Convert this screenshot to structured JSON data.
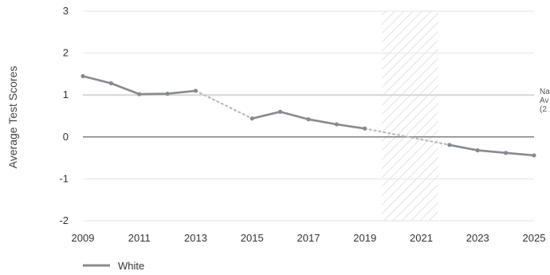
{
  "chart_data": {
    "type": "line",
    "title": "",
    "xlabel": "",
    "ylabel": "Average Test Scores",
    "xlim": [
      2009,
      2025
    ],
    "ylim": [
      -2,
      3
    ],
    "x_ticks": [
      "2009",
      "2011",
      "2013",
      "2015",
      "2017",
      "2019",
      "2021",
      "2023",
      "2025"
    ],
    "y_ticks": [
      "3",
      "2",
      "1",
      "0",
      "-1",
      "-2"
    ],
    "grid": true,
    "legend_position": "bottom-left",
    "reference_line": {
      "y": 1,
      "label_lines": [
        "Na",
        "Av",
        "(2"
      ],
      "color": "#d6d6d6"
    },
    "zero_line": {
      "y": 0,
      "color": "#7f7f7f"
    },
    "shaded_region": {
      "x_start": 2019.6,
      "x_end": 2021.6,
      "pattern": "diagonal-hatch"
    },
    "series": [
      {
        "name": "White",
        "color": "#878a91",
        "x": [
          2009,
          2010,
          2011,
          2012,
          2013,
          2015,
          2016,
          2017,
          2018,
          2019,
          2022,
          2023,
          2024,
          2025
        ],
        "y": [
          1.45,
          1.28,
          1.02,
          1.03,
          1.1,
          0.44,
          0.6,
          0.42,
          0.3,
          0.2,
          -0.19,
          -0.32,
          -0.38,
          -0.44
        ],
        "segments": [
          [
            0,
            4
          ],
          [
            5,
            9
          ],
          [
            10,
            13
          ]
        ],
        "dotted_connectors": [
          [
            4,
            5
          ],
          [
            9,
            10
          ]
        ]
      }
    ]
  }
}
